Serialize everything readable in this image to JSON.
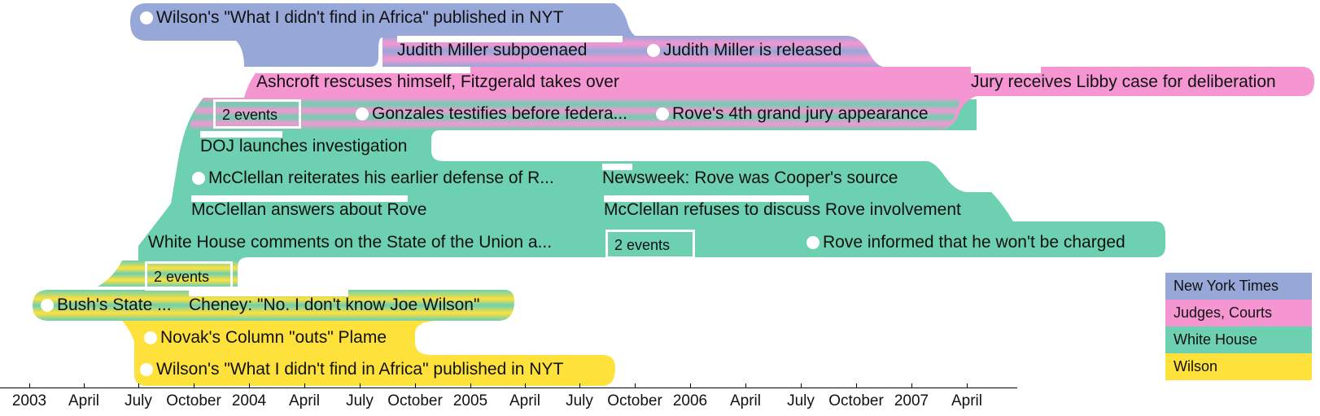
{
  "colors": {
    "new_york_times": "#96a7d8",
    "judges_courts": "#f596d2",
    "white_house": "#6dd0b0",
    "wilson": "#ffe13c"
  },
  "events": [
    {
      "id": "e1",
      "text": "Wilson's \"What I didn't find in Africa\" published in NYT"
    },
    {
      "id": "e2",
      "text": "Judith Miller subpoenaed"
    },
    {
      "id": "e3",
      "text": "Judith Miller is released"
    },
    {
      "id": "e4",
      "text": "Ashcroft rescuses himself, Fitzgerald takes over"
    },
    {
      "id": "e5",
      "text": "Jury receives Libby case for deliberation"
    },
    {
      "id": "e6",
      "text": "2 events"
    },
    {
      "id": "e7",
      "text": "Gonzales testifies before federa..."
    },
    {
      "id": "e8",
      "text": "Rove's 4th grand jury appearance"
    },
    {
      "id": "e9",
      "text": "DOJ launches investigation"
    },
    {
      "id": "e10",
      "text": "McClellan reiterates his earlier defense of R..."
    },
    {
      "id": "e11",
      "text": "Newsweek: Rove was Cooper's source"
    },
    {
      "id": "e12",
      "text": "McClellan answers about Rove"
    },
    {
      "id": "e13",
      "text": "McClellan refuses to discuss Rove involvement"
    },
    {
      "id": "e14",
      "text": "White House comments on the State of the Union a..."
    },
    {
      "id": "e15",
      "text": "2 events"
    },
    {
      "id": "e16",
      "text": "Rove informed that he won't be charged"
    },
    {
      "id": "e17",
      "text": "2 events"
    },
    {
      "id": "e18",
      "text": "Bush's State ..."
    },
    {
      "id": "e19",
      "text": "Cheney: \"No. I don't know Joe Wilson\""
    },
    {
      "id": "e20",
      "text": "Novak's Column \"outs\" Plame"
    },
    {
      "id": "e21",
      "text": "Wilson's \"What I didn't find in Africa\" published in NYT"
    }
  ],
  "axis": {
    "ticks": [
      "2003",
      "April",
      "July",
      "October",
      "2004",
      "April",
      "July",
      "October",
      "2005",
      "April",
      "July",
      "October",
      "2006",
      "April",
      "July",
      "October",
      "2007",
      "April"
    ]
  },
  "legend": [
    {
      "label": "New York Times",
      "color": "#96a7d8"
    },
    {
      "label": "Judges, Courts",
      "color": "#f596d2"
    },
    {
      "label": "White House",
      "color": "#6dd0b0"
    },
    {
      "label": "Wilson",
      "color": "#ffe13c"
    }
  ]
}
